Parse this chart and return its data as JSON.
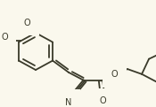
{
  "bg_color": "#faf8ed",
  "line_color": "#3a3a2a",
  "line_width": 1.3,
  "font_size": 6.5,
  "figsize": [
    1.75,
    1.21
  ],
  "dpi": 100,
  "xlim": [
    0,
    175
  ],
  "ylim": [
    0,
    121
  ]
}
